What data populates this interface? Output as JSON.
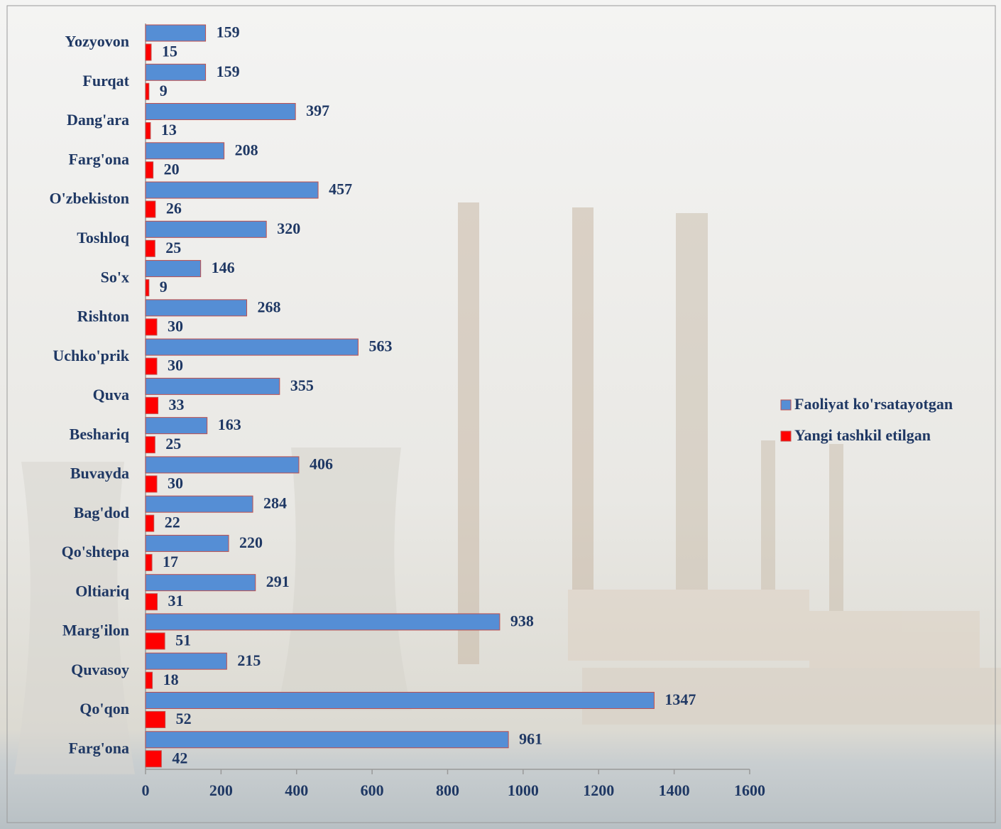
{
  "chart_data": {
    "type": "bar",
    "orientation": "horizontal",
    "categories": [
      "Yozyovon",
      "Furqat",
      "Dang'ara",
      "Farg'ona",
      "O'zbekiston",
      "Toshloq",
      "So'x",
      "Rishton",
      "Uchko'prik",
      "Quva",
      "Beshariq",
      "Buvayda",
      "Bag'dod",
      "Qo'shtepa",
      "Oltiariq",
      "Marg'ilon",
      "Quvasoy",
      "Qo'qon",
      "Farg'ona"
    ],
    "series": [
      {
        "name": "Faoliyat ko'rsatayotgan",
        "color": "#558ed5",
        "values": [
          159,
          159,
          397,
          208,
          457,
          320,
          146,
          268,
          563,
          355,
          163,
          406,
          284,
          220,
          291,
          938,
          215,
          1347,
          961
        ]
      },
      {
        "name": "Yangi tashkil etilgan",
        "color": "#ff0000",
        "values": [
          15,
          9,
          13,
          20,
          26,
          25,
          9,
          30,
          30,
          33,
          25,
          30,
          22,
          17,
          31,
          51,
          18,
          52,
          42
        ]
      }
    ],
    "xlim": [
      0,
      1600
    ],
    "xticks": [
      0,
      200,
      400,
      600,
      800,
      1000,
      1200,
      1400,
      1600
    ],
    "grid": false,
    "legend": "right"
  }
}
